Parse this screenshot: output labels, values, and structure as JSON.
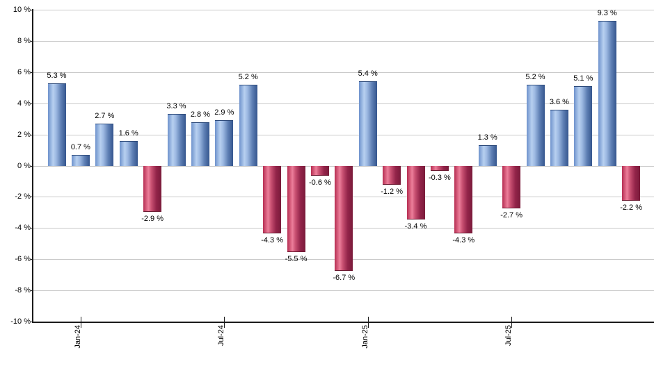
{
  "chart_data": {
    "type": "bar",
    "title": "",
    "xlabel": "",
    "ylabel": "",
    "ylim": [
      -10,
      10
    ],
    "grid": true,
    "values": [
      5.3,
      0.7,
      2.7,
      1.6,
      -2.9,
      3.3,
      2.8,
      2.9,
      5.2,
      -4.3,
      -5.5,
      -0.6,
      -6.7,
      5.4,
      -1.2,
      -3.4,
      -0.3,
      -4.3,
      1.3,
      -2.7,
      5.2,
      3.6,
      5.1,
      9.3,
      -2.2
    ],
    "bar_value_labels": [
      "5.3 %",
      "0.7 %",
      "2.7 %",
      "1.6 %",
      "-2.9 %",
      "3.3 %",
      "2.8 %",
      "2.9 %",
      "5.2 %",
      "-4.3 %",
      "-5.5 %",
      "-0.6 %",
      "-6.7 %",
      "5.4 %",
      "-1.2 %",
      "-3.4 %",
      "-0.3 %",
      "-4.3 %",
      "1.3 %",
      "-2.7 %",
      "5.2 %",
      "3.6 %",
      "5.1 %",
      "9.3 %",
      "-2.2 %"
    ],
    "x_ticks": [
      {
        "bar_index": 1,
        "label": "Jan-24"
      },
      {
        "bar_index": 7,
        "label": "Jul-24"
      },
      {
        "bar_index": 13,
        "label": "Jan-25"
      },
      {
        "bar_index": 19,
        "label": "Jul-25"
      }
    ],
    "y_ticks": [
      {
        "value": 10,
        "label": "10 %"
      },
      {
        "value": 8,
        "label": "8 %"
      },
      {
        "value": 6,
        "label": "6 %"
      },
      {
        "value": 4,
        "label": "4 %"
      },
      {
        "value": 2,
        "label": "2 %"
      },
      {
        "value": 0,
        "label": "0 %"
      },
      {
        "value": -2,
        "label": "-2 %"
      },
      {
        "value": -4,
        "label": "-4 %"
      },
      {
        "value": -6,
        "label": "-6 %"
      },
      {
        "value": -8,
        "label": "-8 %"
      },
      {
        "value": -10,
        "label": "-10 %"
      }
    ],
    "colors": {
      "positive_bar_gradient": [
        "#6e92cc",
        "#b7d0f0",
        "#9db9e2",
        "#5e7fb4",
        "#35568e"
      ],
      "negative_bar_gradient": [
        "#b62e52",
        "#ec7e9a",
        "#c85071",
        "#93244a",
        "#7a1b3a"
      ],
      "gridline": "#c9c9c9",
      "axis": "#1a1a1a",
      "label_text": "#000000",
      "background": "#ffffff"
    },
    "legend": null
  }
}
